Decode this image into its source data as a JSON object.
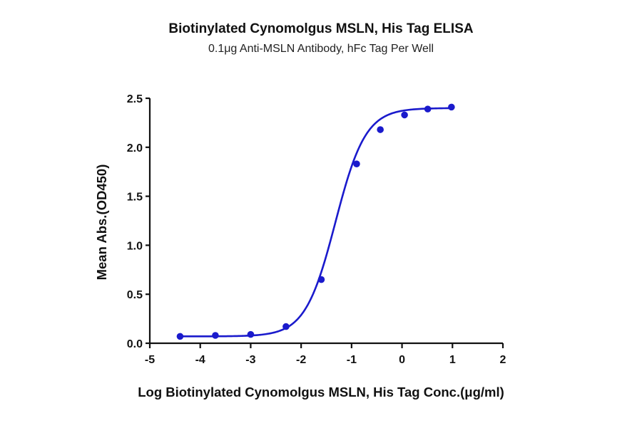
{
  "chart": {
    "title": "Biotinylated Cynomolgus MSLN, His Tag ELISA",
    "subtitle": "0.1μg Anti-MSLN Antibody, hFc Tag Per Well",
    "xlabel": "Log Biotinylated Cynomolgus MSLN, His Tag Conc.(μg/ml)",
    "ylabel": "Mean Abs.(OD450)",
    "series_color": "#1a1acc"
  },
  "chart_data": {
    "type": "scatter",
    "title": "Biotinylated Cynomolgus MSLN, His Tag ELISA",
    "subtitle": "0.1μg Anti-MSLN Antibody, hFc Tag Per Well",
    "xlabel": "Log Biotinylated Cynomolgus MSLN, His Tag Conc.(μg/ml)",
    "ylabel": "Mean Abs.(OD450)",
    "xlim": [
      -5,
      2
    ],
    "ylim": [
      0,
      2.5
    ],
    "xticks": [
      "-5",
      "-4",
      "-3",
      "-2",
      "-1",
      "0",
      "1",
      "2"
    ],
    "yticks": [
      "0.0",
      "0.5",
      "1.0",
      "1.5",
      "2.0",
      "2.5"
    ],
    "grid": false,
    "legend": null,
    "fit": "4-parameter logistic (sigmoidal) curve",
    "series": [
      {
        "name": "Mean Abs.(OD450)",
        "color": "#1a1acc",
        "x": [
          -4.4,
          -3.7,
          -3.0,
          -2.3,
          -1.6,
          -0.9,
          -0.43,
          0.05,
          0.51,
          0.98
        ],
        "y": [
          0.07,
          0.08,
          0.09,
          0.17,
          0.65,
          1.83,
          2.18,
          2.33,
          2.39,
          2.41
        ]
      }
    ]
  }
}
